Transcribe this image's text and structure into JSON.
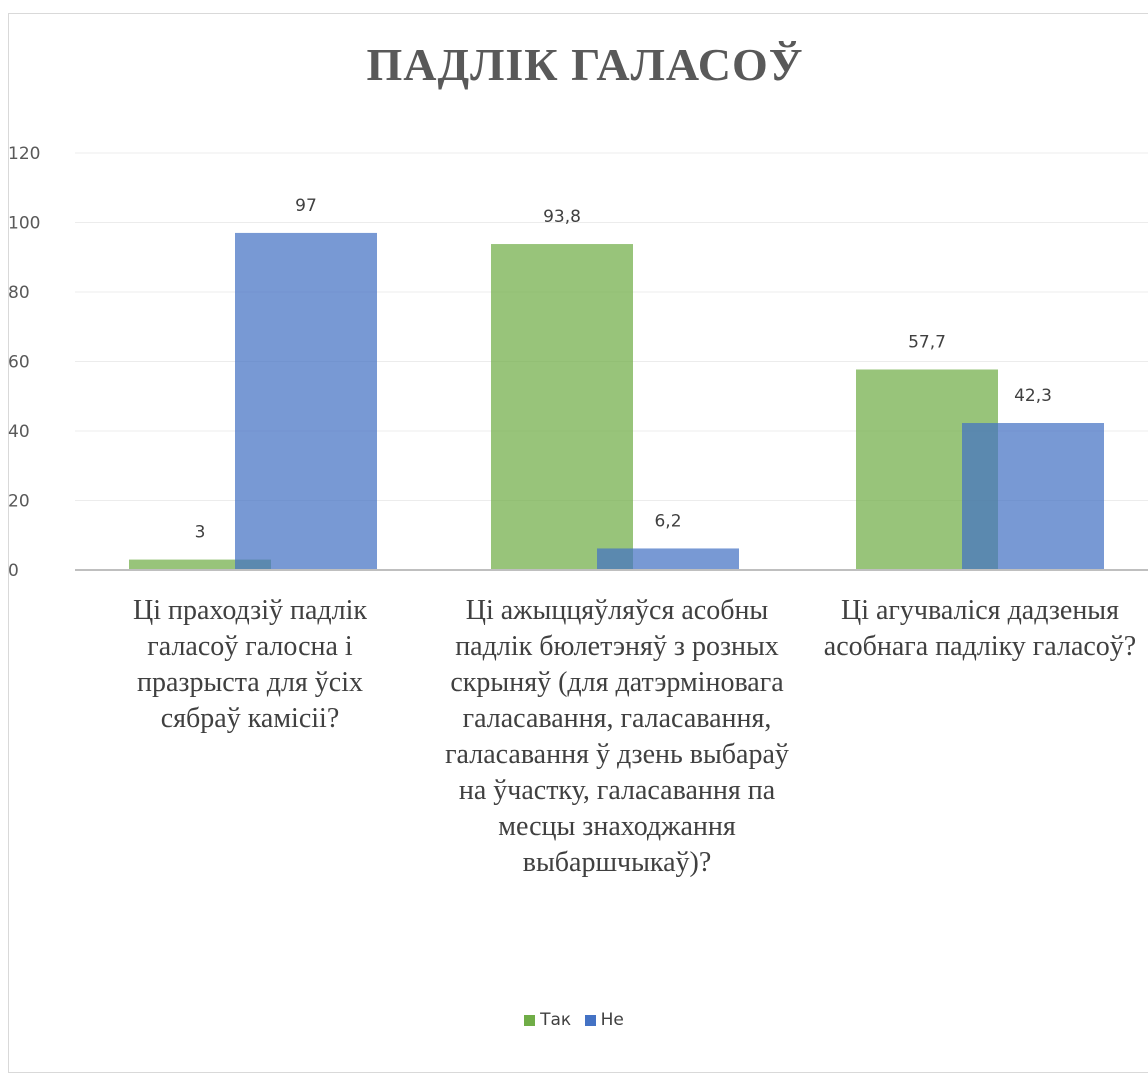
{
  "chart_data": {
    "type": "bar",
    "title": "ПАДЛІК ГАЛАСОЎ",
    "categories": [
      "Ці праходзіў падлік галасоў галосна і празрыста для ўсіх сябраў камісіі?",
      "Ці ажыццяўляўся асобны падлік бюлетэняў з розных скрыняў (для датэрміновага галасавання, галасавання, галасавання ў дзень выбараў на ўчастку, галасавання па месцы знаходжання выбаршчыкаў)?",
      "Ці агучваліся дадзеныя асобнага падліку галасоў?"
    ],
    "series": [
      {
        "name": "Так",
        "values": [
          3,
          93.8,
          57.7
        ],
        "labels": [
          "3",
          "93,8",
          "57,7"
        ],
        "color": "#70ad47"
      },
      {
        "name": "Не",
        "values": [
          97,
          6.2,
          42.3
        ],
        "labels": [
          "97",
          "6,2",
          "42,3"
        ],
        "color": "#4472c4"
      }
    ],
    "ylim": [
      0,
      120
    ],
    "yticks": [
      0,
      20,
      40,
      60,
      80,
      100,
      120
    ],
    "grid": true,
    "legend_position": "bottom"
  }
}
